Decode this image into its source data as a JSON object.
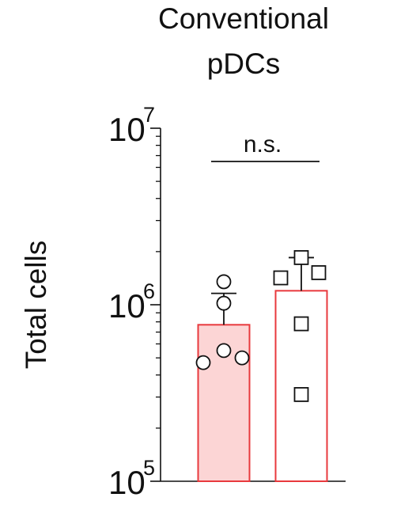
{
  "chart_data": {
    "type": "bar",
    "title": [
      "Conventional",
      "pDCs"
    ],
    "ylabel": "Total cells",
    "yscale": "log",
    "ylim": [
      100000,
      10000000
    ],
    "y_ticks": [
      {
        "value": 100000,
        "base": "10",
        "exp": "5"
      },
      {
        "value": 1000000,
        "base": "10",
        "exp": "6"
      },
      {
        "value": 10000000,
        "base": "10",
        "exp": "7"
      }
    ],
    "grid": false,
    "legend": "none",
    "annotation": "n.s.",
    "groups": [
      {
        "marker": "circle",
        "bar_value": 770000,
        "error_upper": 1160000,
        "bar_fill": "#fcd5d5",
        "bar_stroke": "#e8393d",
        "points": [
          1350000,
          1020000,
          550000,
          470000,
          500000
        ]
      },
      {
        "marker": "square",
        "bar_value": 1200000,
        "error_upper": 1850000,
        "bar_fill": "#ffffff",
        "bar_stroke": "#e8393d",
        "points": [
          1420000,
          1850000,
          1520000,
          780000,
          310000
        ]
      }
    ]
  }
}
